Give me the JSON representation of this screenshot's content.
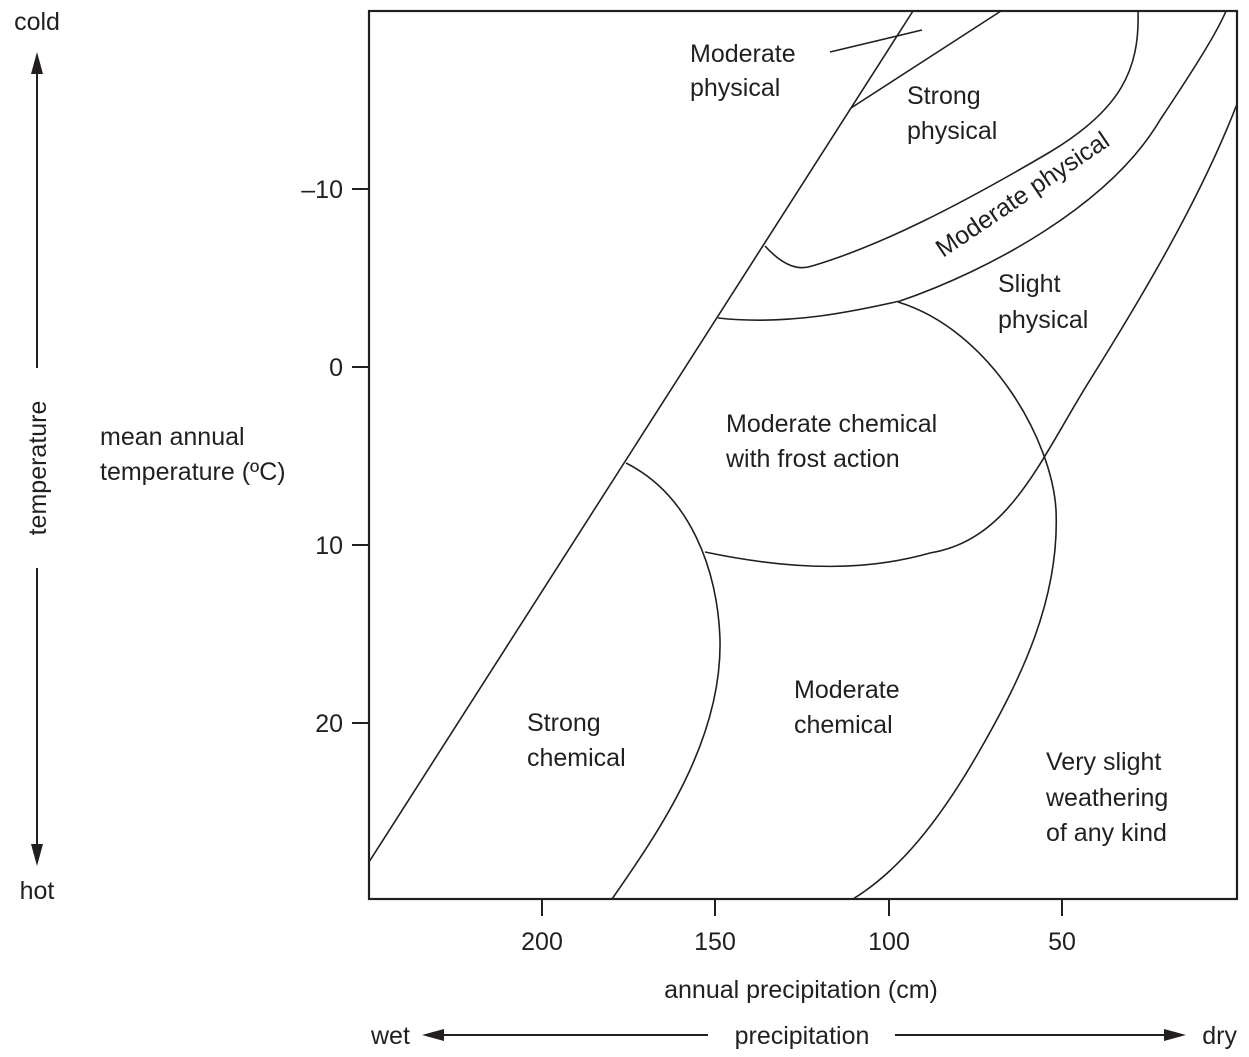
{
  "diagram": {
    "ylabel": [
      "mean annual",
      "temperature (ºC)"
    ],
    "xlabel": "annual precipitation (cm)",
    "y_ticks": [
      "–10",
      "0",
      "10",
      "20"
    ],
    "x_ticks": [
      "200",
      "150",
      "100",
      "50"
    ],
    "left_arrow": {
      "top": "cold",
      "middle": "temperature",
      "bottom": "hot"
    },
    "bottom_arrow": {
      "left": "wet",
      "middle": "precipitation",
      "right": "dry"
    },
    "regions": {
      "moderate_physical_top": [
        "Moderate",
        "physical"
      ],
      "strong_physical": [
        "Strong",
        "physical"
      ],
      "moderate_physical_band": "Moderate physical",
      "slight_physical": [
        "Slight",
        "physical"
      ],
      "moderate_chemical_frost": [
        "Moderate chemical",
        "with frost action"
      ],
      "strong_chemical": [
        "Strong",
        "chemical"
      ],
      "moderate_chemical": [
        "Moderate",
        "chemical"
      ],
      "very_slight": [
        "Very slight",
        "weathering",
        "of any kind"
      ]
    }
  }
}
